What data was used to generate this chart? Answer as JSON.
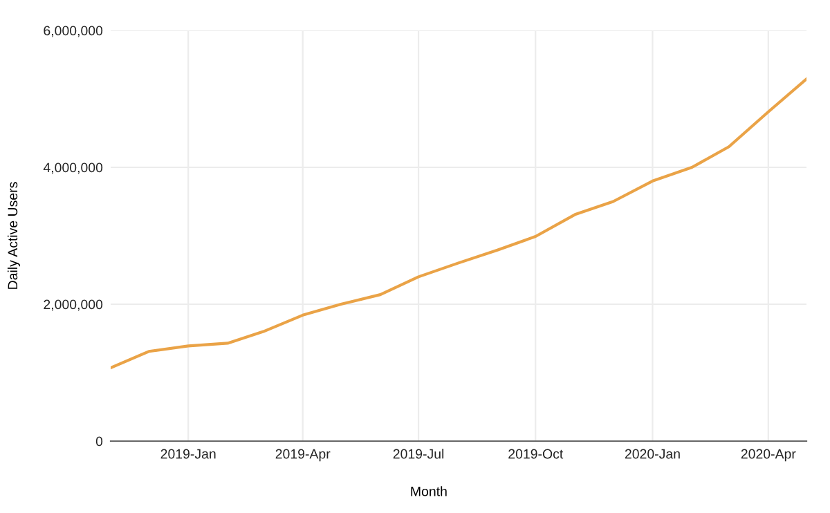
{
  "chart_data": {
    "type": "line",
    "xlabel": "Month",
    "ylabel": "Daily Active Users",
    "x": [
      "2018-11",
      "2018-12",
      "2019-01",
      "2019-02",
      "2019-03",
      "2019-04",
      "2019-05",
      "2019-06",
      "2019-07",
      "2019-08",
      "2019-09",
      "2019-10",
      "2019-11",
      "2019-12",
      "2020-01",
      "2020-02",
      "2020-03",
      "2020-04",
      "2020-05"
    ],
    "series": [
      {
        "color": "#eaa347",
        "values": [
          1070000,
          1310000,
          1390000,
          1430000,
          1600000,
          1840000,
          2000000,
          2140000,
          2400000,
          2600000,
          2790000,
          2990000,
          3310000,
          3500000,
          3800000,
          4000000,
          4300000,
          4810000,
          5290000
        ]
      }
    ],
    "xlim": [
      "2018-11",
      "2020-05"
    ],
    "xticks": [
      {
        "value": "2019-01",
        "label": "2019-Jan"
      },
      {
        "value": "2019-04",
        "label": "2019-Apr"
      },
      {
        "value": "2019-07",
        "label": "2019-Jul"
      },
      {
        "value": "2019-10",
        "label": "2019-Oct"
      },
      {
        "value": "2020-01",
        "label": "2020-Jan"
      },
      {
        "value": "2020-04",
        "label": "2020-Apr"
      }
    ],
    "ylim": [
      0,
      6000000
    ],
    "yticks": [
      {
        "value": 0,
        "label": "0"
      },
      {
        "value": 2000000,
        "label": "2,000,000"
      },
      {
        "value": 4000000,
        "label": "4,000,000"
      },
      {
        "value": 6000000,
        "label": "6,000,000"
      }
    ],
    "grid": true,
    "marker": "none",
    "line_style": "solid"
  }
}
